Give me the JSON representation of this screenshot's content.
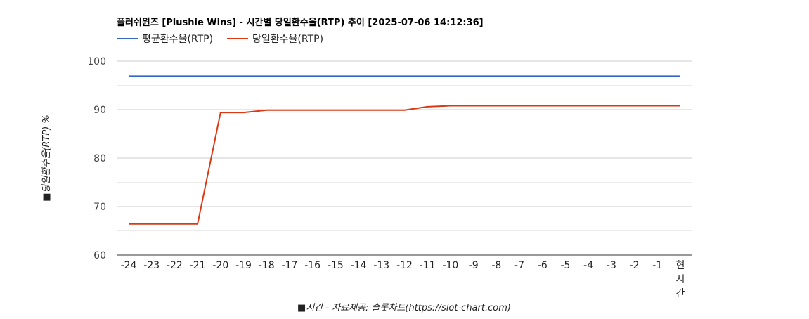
{
  "chart_data": {
    "type": "line",
    "title": "플러쉬윈즈 [Plushie Wins] - 시간별 당일환수율(RTP) 추이 [2025-07-06 14:12:36]",
    "xlabel": "■시간 - 자료제공: 슬롯차트(https://slot-chart.com)",
    "ylabel": "■당일환수율(RTP) %",
    "categories": [
      "-24",
      "-23",
      "-22",
      "-21",
      "-20",
      "-19",
      "-18",
      "-17",
      "-16",
      "-15",
      "-14",
      "-13",
      "-12",
      "-11",
      "-10",
      "-9",
      "-8",
      "-7",
      "-6",
      "-5",
      "-4",
      "-3",
      "-2",
      "-1",
      "현시간"
    ],
    "ylim": [
      60,
      100
    ],
    "yticks": [
      60,
      70,
      80,
      90,
      100
    ],
    "grid": true,
    "legend_position": "top-left",
    "series": [
      {
        "name": "평균환수율(RTP)",
        "color": "#3366cc",
        "values": [
          96.9,
          96.9,
          96.9,
          96.9,
          96.9,
          96.9,
          96.9,
          96.9,
          96.9,
          96.9,
          96.9,
          96.9,
          96.9,
          96.9,
          96.9,
          96.9,
          96.9,
          96.9,
          96.9,
          96.9,
          96.9,
          96.9,
          96.9,
          96.9,
          96.9
        ]
      },
      {
        "name": "당일환수율(RTP)",
        "color": "#dc3912",
        "values": [
          66.4,
          66.4,
          66.4,
          66.4,
          89.4,
          89.4,
          89.9,
          89.9,
          89.9,
          89.9,
          89.9,
          89.9,
          89.9,
          90.6,
          90.8,
          90.8,
          90.8,
          90.8,
          90.8,
          90.8,
          90.8,
          90.8,
          90.8,
          90.8,
          90.8
        ]
      }
    ]
  }
}
